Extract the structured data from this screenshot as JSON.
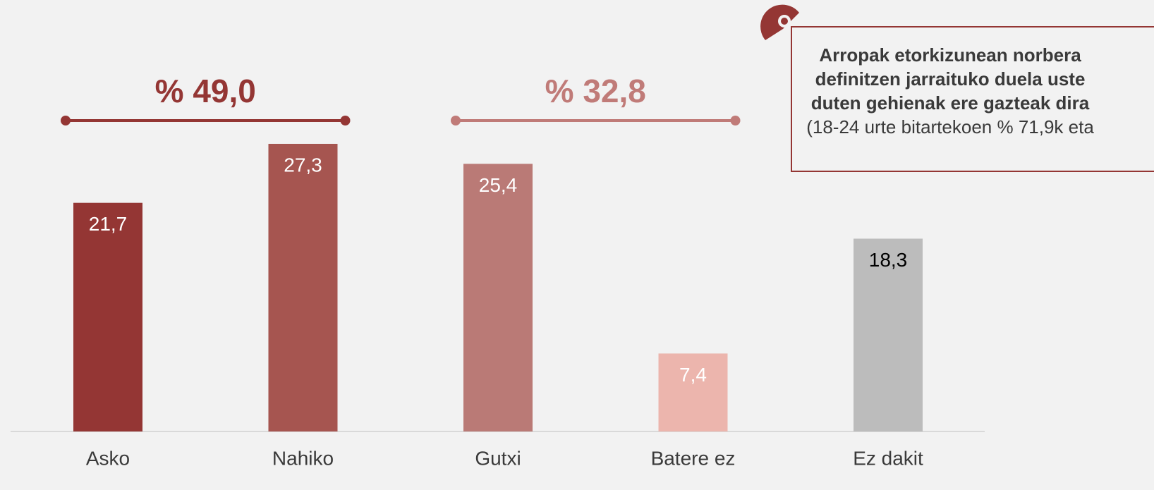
{
  "chart_data": {
    "type": "bar",
    "categories": [
      "Asko",
      "Nahiko",
      "Gutxi",
      "Batere ez",
      "Ez dakit"
    ],
    "values": [
      21.7,
      27.3,
      25.4,
      7.4,
      18.3
    ],
    "value_labels": [
      "21,7",
      "27,3",
      "25,4",
      "7,4",
      "18,3"
    ],
    "colors": [
      "#943634",
      "#a65550",
      "#ba7a76",
      "#ecb5ad",
      "#bcbcbc"
    ],
    "label_colors": [
      "#ffffff",
      "#ffffff",
      "#ffffff",
      "#ffffff",
      "#000000"
    ],
    "annotations": [
      {
        "value": 49.0,
        "label": "% 49,0",
        "color": "#943634"
      },
      {
        "value": 32.8,
        "label": "% 32,8",
        "color": "#c07b78"
      }
    ],
    "note": {
      "title": "Arropak etorkizunean norbera definitzen jarraituko duela uste duten gehienak ere gazteak dira",
      "body": "(18-24 urte bitartekoen % 71,9k eta"
    }
  }
}
